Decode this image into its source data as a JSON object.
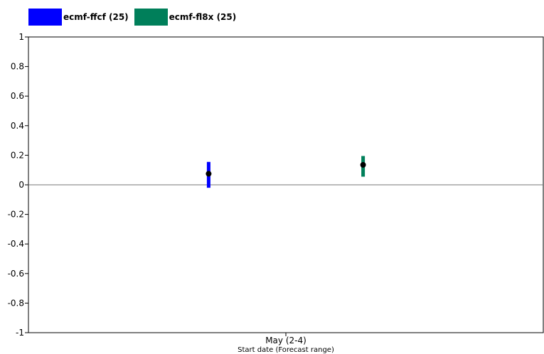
{
  "chart_data": {
    "type": "scatter",
    "title": "",
    "xlabel": "Start date (Forecast range)",
    "ylabel": "",
    "ylim": [
      -1,
      1
    ],
    "yticks": [
      "1",
      "0.8",
      "0.6",
      "0.4",
      "0.2",
      "0",
      "-0.2",
      "-0.4",
      "-0.6",
      "-0.8",
      "-1"
    ],
    "categories": [
      "May (2-4)"
    ],
    "legend_position": "top-left",
    "grid": false,
    "series": [
      {
        "name": "ecmf-ffcf (25)",
        "color": "#0000ff",
        "value": 0.075,
        "low": -0.02,
        "high": 0.155
      },
      {
        "name": "ecmf-fl8x (25)",
        "color": "#007f5a",
        "value": 0.135,
        "low": 0.055,
        "high": 0.195
      }
    ]
  }
}
